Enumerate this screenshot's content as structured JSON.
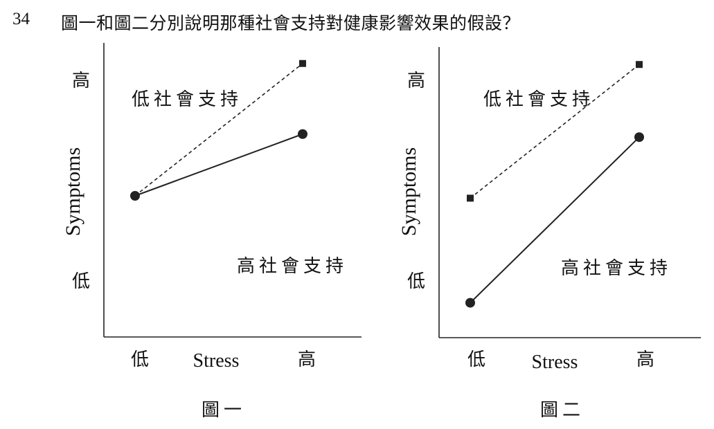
{
  "question": {
    "number": "34",
    "text": "圖一和圖二分別說明那種社會支持對健康影響效果的假設？"
  },
  "chart_data": [
    {
      "type": "line",
      "title": "圖一",
      "xlabel": "Stress",
      "ylabel": "Symptoms",
      "x_ticks": [
        "低",
        "高"
      ],
      "y_ticks": [
        "低",
        "高"
      ],
      "ylim": [
        0,
        1
      ],
      "series": [
        {
          "name": "低社會支持",
          "style": "dashed",
          "marker": "square",
          "values": [
            0.48,
            0.93
          ]
        },
        {
          "name": "高社會支持",
          "style": "solid",
          "marker": "circle",
          "values": [
            0.48,
            0.69
          ]
        }
      ]
    },
    {
      "type": "line",
      "title": "圖二",
      "xlabel": "Stress",
      "ylabel": "Symptoms",
      "x_ticks": [
        "低",
        "高"
      ],
      "y_ticks": [
        "低",
        "高"
      ],
      "ylim": [
        0,
        1
      ],
      "series": [
        {
          "name": "低社會支持",
          "style": "dashed",
          "marker": "square",
          "values": [
            0.48,
            0.94
          ]
        },
        {
          "name": "高社會支持",
          "style": "solid",
          "marker": "circle",
          "values": [
            0.12,
            0.69
          ]
        }
      ]
    }
  ]
}
